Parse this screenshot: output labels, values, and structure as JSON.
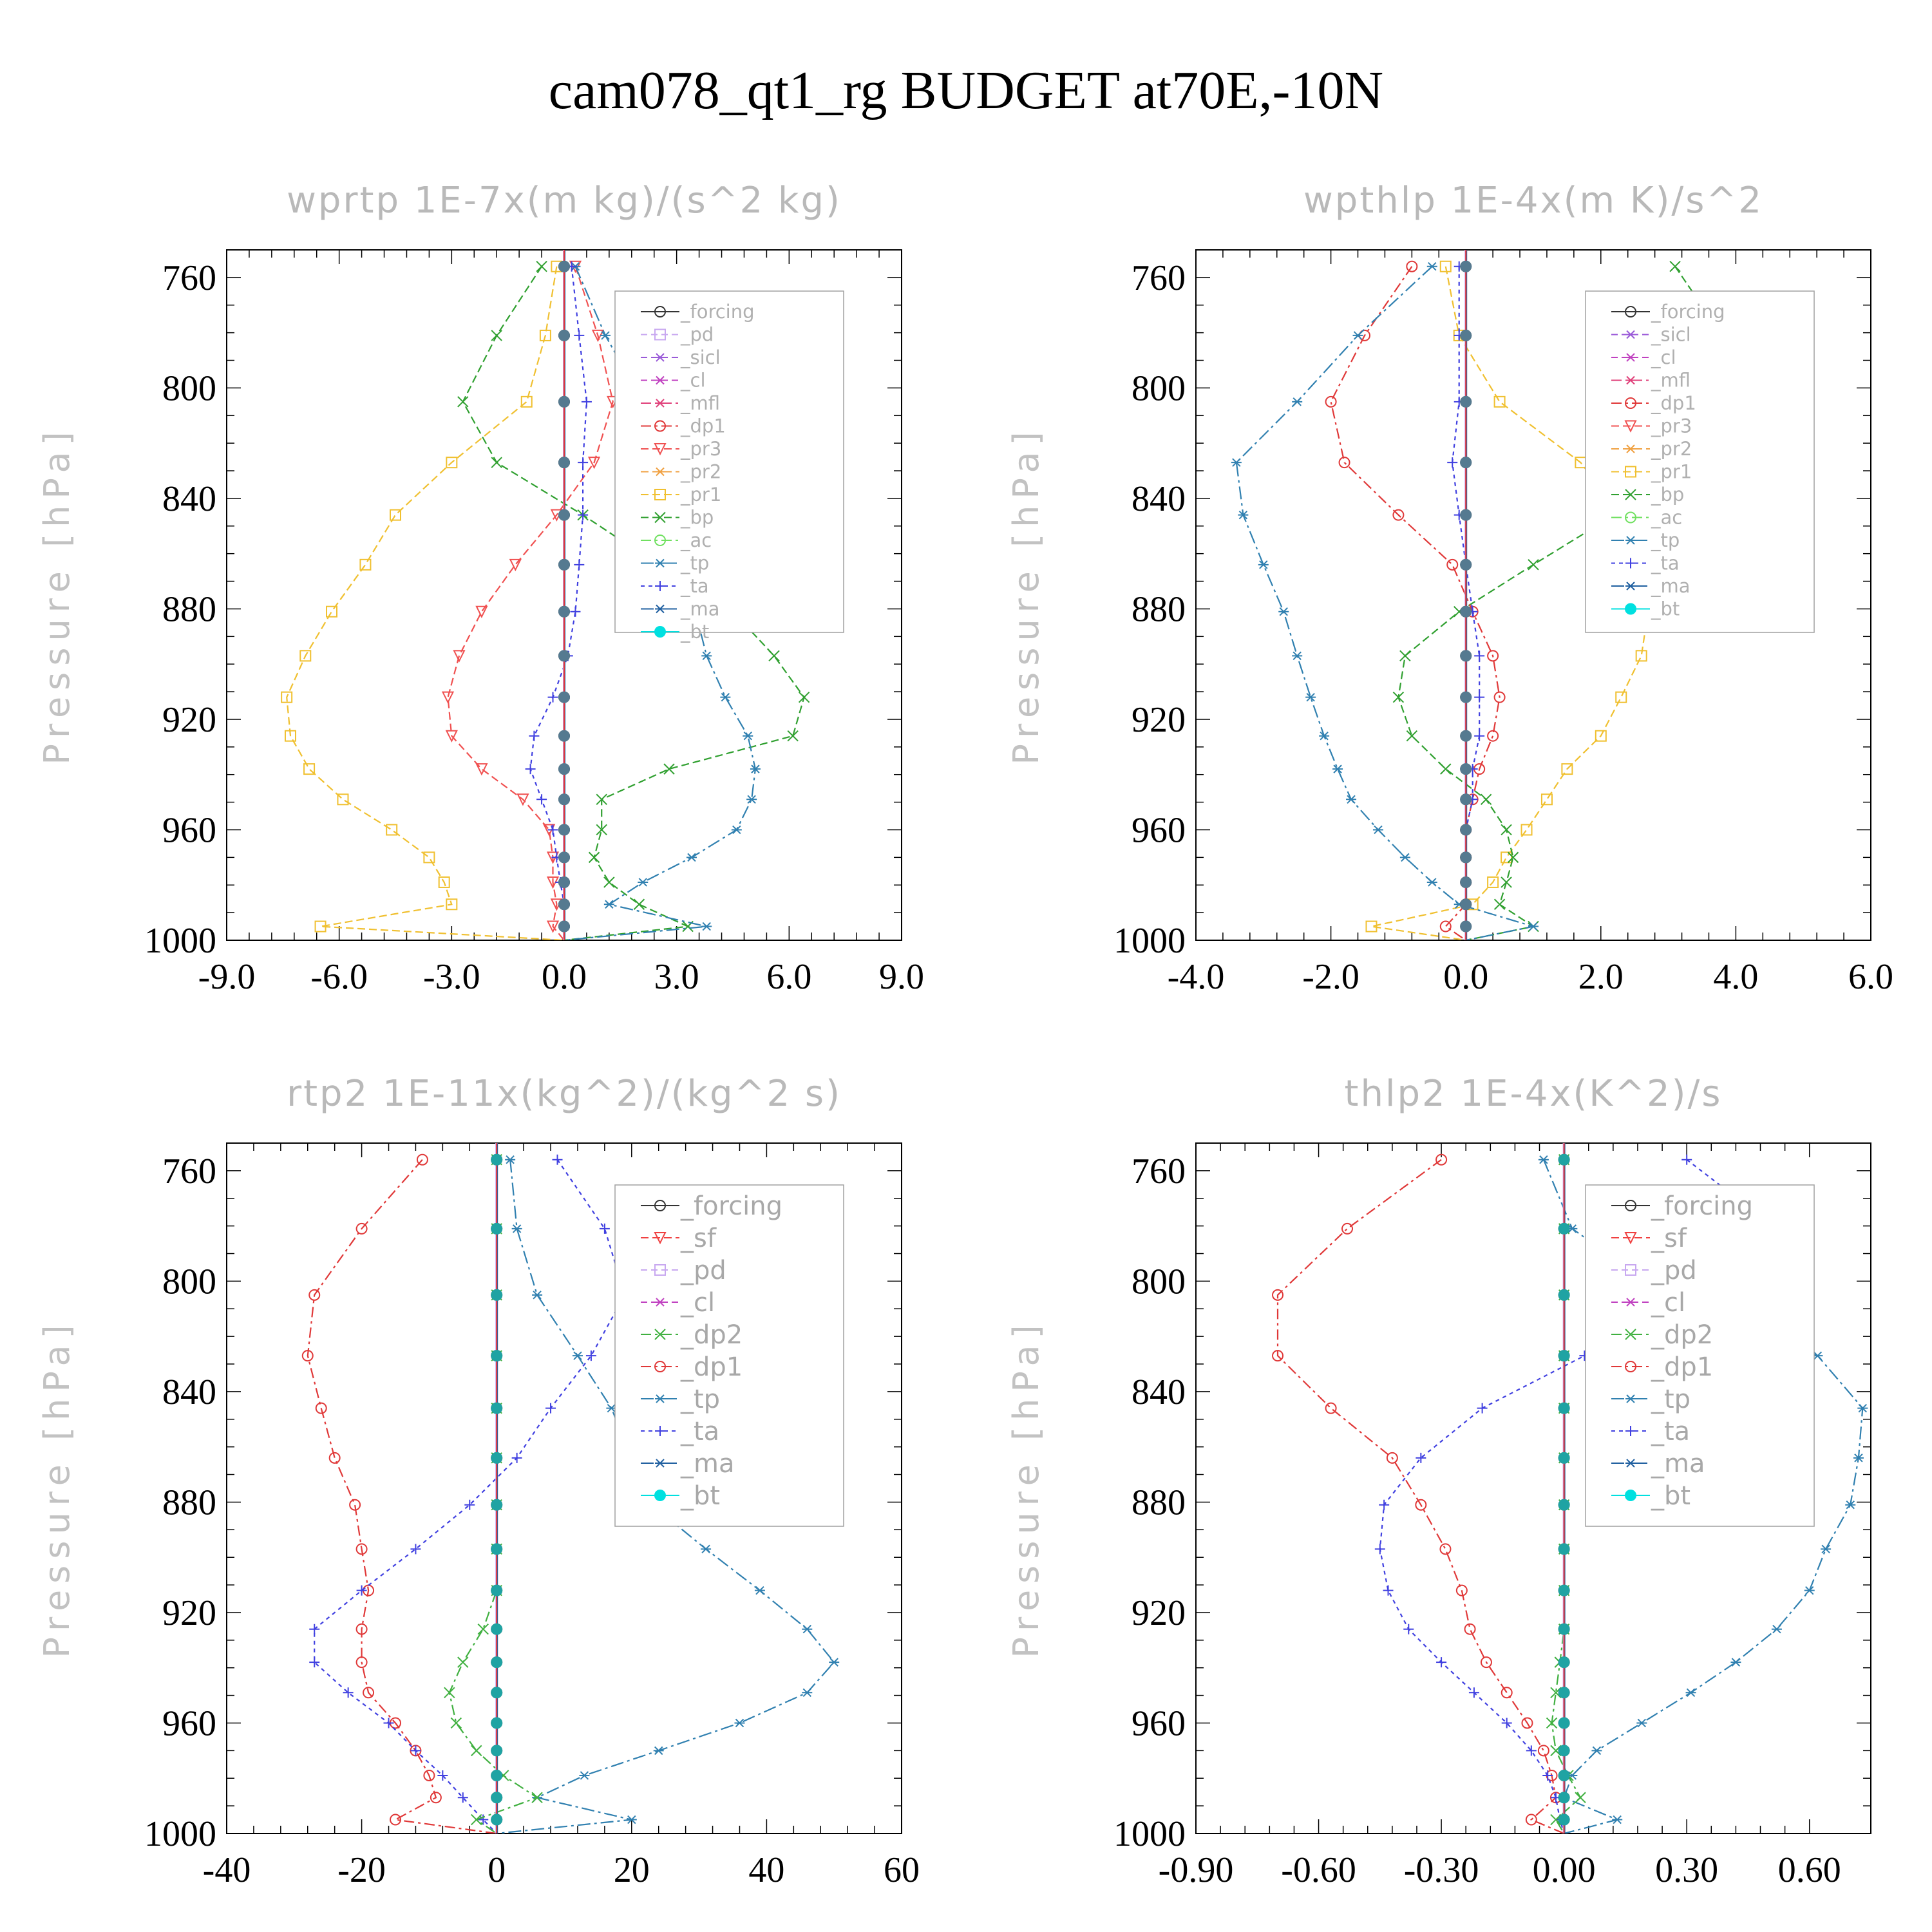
{
  "title": "cam078_qt1_rg  BUDGET at70E,-10N",
  "ylabel": "Pressure [hPa]",
  "colors": {
    "forcing": "#333333",
    "pd": "#c8a8f0",
    "sicl": "#9a5ad8",
    "cl": "#c040c0",
    "mfl": "#e0407a",
    "dp1": "#e03838",
    "pr3": "#f05050",
    "pr2": "#f0a040",
    "pr1": "#f0c030",
    "bp": "#30a030",
    "ac": "#70e060",
    "tp": "#3080b0",
    "ta": "#4040e0",
    "ma": "#2060a0",
    "bt": "#00e0e0",
    "sf": "#f04040",
    "dp2": "#40b040"
  },
  "chart_data": [
    {
      "type": "line",
      "title": "wprtp  1E-7x(m kg)/(s^2 kg)",
      "ylabel": "Pressure [hPa]",
      "xlim": [
        -9,
        9
      ],
      "ylim": [
        1000,
        750
      ],
      "xticks": [
        "-9.0",
        "-6.0",
        "-3.0",
        "0.0",
        "3.0",
        "6.0",
        "9.0"
      ],
      "yticks": [
        "760",
        "800",
        "840",
        "880",
        "920",
        "960",
        "1000"
      ],
      "legend_small": true,
      "legend": [
        {
          "key": "forcing",
          "label": "_forcing"
        },
        {
          "key": "pd",
          "label": "_pd"
        },
        {
          "key": "sicl",
          "label": "_sicl"
        },
        {
          "key": "cl",
          "label": "_cl"
        },
        {
          "key": "mfl",
          "label": "_mfl"
        },
        {
          "key": "dp1",
          "label": "_dp1"
        },
        {
          "key": "pr3",
          "label": "_pr3"
        },
        {
          "key": "pr2",
          "label": "_pr2"
        },
        {
          "key": "pr1",
          "label": "_pr1"
        },
        {
          "key": "bp",
          "label": "_bp"
        },
        {
          "key": "ac",
          "label": "_ac"
        },
        {
          "key": "tp",
          "label": "_tp"
        },
        {
          "key": "ta",
          "label": "_ta"
        },
        {
          "key": "ma",
          "label": "_ma"
        },
        {
          "key": "bt",
          "label": "_bt"
        }
      ],
      "levels": [
        756,
        781,
        805,
        827,
        846,
        864,
        881,
        897,
        912,
        926,
        938,
        949,
        960,
        970,
        979,
        987,
        995,
        1000
      ],
      "series": [
        {
          "key": "pr1",
          "x": [
            -0.2,
            -0.5,
            -1.0,
            -3.0,
            -4.5,
            -5.3,
            -6.2,
            -6.9,
            -7.4,
            -7.3,
            -6.8,
            -5.9,
            -4.6,
            -3.6,
            -3.2,
            -3.0,
            -6.5,
            0.0
          ]
        },
        {
          "key": "bp",
          "x": [
            -0.6,
            -1.8,
            -2.7,
            -1.8,
            0.5,
            2.5,
            4.5,
            5.6,
            6.4,
            6.1,
            2.8,
            1.0,
            1.0,
            0.8,
            1.2,
            2.0,
            3.3,
            0.0
          ]
        },
        {
          "key": "pr3",
          "x": [
            0.3,
            0.9,
            1.3,
            0.8,
            -0.2,
            -1.3,
            -2.2,
            -2.8,
            -3.1,
            -3.0,
            -2.2,
            -1.1,
            -0.4,
            -0.3,
            -0.3,
            -0.2,
            -0.3,
            0.0
          ]
        },
        {
          "key": "tp",
          "x": [
            0.3,
            1.1,
            2.1,
            2.8,
            3.4,
            3.5,
            3.5,
            3.8,
            4.3,
            4.9,
            5.1,
            5.0,
            4.6,
            3.4,
            2.1,
            1.2,
            3.8,
            0.0
          ]
        },
        {
          "key": "ta",
          "x": [
            0.2,
            0.4,
            0.6,
            0.5,
            0.5,
            0.4,
            0.3,
            0.1,
            -0.3,
            -0.8,
            -0.9,
            -0.6,
            -0.3,
            -0.2,
            -0.1,
            0.0,
            0.0,
            0.0
          ]
        },
        {
          "key": "forcing",
          "x": [
            0,
            0,
            0,
            0,
            0,
            0,
            0,
            0,
            0,
            0,
            0,
            0,
            0,
            0,
            0,
            0,
            0,
            0
          ]
        }
      ]
    },
    {
      "type": "line",
      "title": "wpthlp  1E-4x(m K)/s^2",
      "ylabel": "Pressure [hPa]",
      "xlim": [
        -4,
        6
      ],
      "ylim": [
        1000,
        750
      ],
      "xticks": [
        "-4.0",
        "-2.0",
        "0.0",
        "2.0",
        "4.0",
        "6.0"
      ],
      "yticks": [
        "760",
        "800",
        "840",
        "880",
        "920",
        "960",
        "1000"
      ],
      "legend_small": true,
      "legend": [
        {
          "key": "forcing",
          "label": "_forcing"
        },
        {
          "key": "sicl",
          "label": "_sicl"
        },
        {
          "key": "cl",
          "label": "_cl"
        },
        {
          "key": "mfl",
          "label": "_mfl"
        },
        {
          "key": "dp1",
          "label": "_dp1"
        },
        {
          "key": "pr3",
          "label": "_pr3"
        },
        {
          "key": "pr2",
          "label": "_pr2"
        },
        {
          "key": "pr1",
          "label": "_pr1"
        },
        {
          "key": "bp",
          "label": "_bp"
        },
        {
          "key": "ac",
          "label": "_ac"
        },
        {
          "key": "tp",
          "label": "_tp"
        },
        {
          "key": "ta",
          "label": "_ta"
        },
        {
          "key": "ma",
          "label": "_ma"
        },
        {
          "key": "bt",
          "label": "_bt"
        }
      ],
      "levels": [
        756,
        781,
        805,
        827,
        846,
        864,
        881,
        897,
        912,
        926,
        938,
        949,
        960,
        970,
        979,
        987,
        995,
        1000
      ],
      "series": [
        {
          "key": "pr1",
          "x": [
            -0.3,
            -0.1,
            0.5,
            1.7,
            2.3,
            2.6,
            2.7,
            2.6,
            2.3,
            2.0,
            1.5,
            1.2,
            0.9,
            0.6,
            0.4,
            0.1,
            -1.4,
            0.0
          ]
        },
        {
          "key": "bp",
          "x": [
            3.1,
            3.8,
            4.2,
            3.5,
            2.2,
            1.0,
            -0.1,
            -0.9,
            -1.0,
            -0.8,
            -0.3,
            0.3,
            0.6,
            0.7,
            0.6,
            0.5,
            1.0,
            0.0
          ]
        },
        {
          "key": "dp1",
          "x": [
            -0.8,
            -1.5,
            -2.0,
            -1.8,
            -1.0,
            -0.2,
            0.1,
            0.4,
            0.5,
            0.4,
            0.2,
            0.1,
            0.0,
            0.0,
            0.0,
            0.0,
            -0.3,
            0.0
          ]
        },
        {
          "key": "tp",
          "x": [
            -0.5,
            -1.6,
            -2.5,
            -3.4,
            -3.3,
            -3.0,
            -2.7,
            -2.5,
            -2.3,
            -2.1,
            -1.9,
            -1.7,
            -1.3,
            -0.9,
            -0.5,
            -0.1,
            1.0,
            0.0
          ]
        },
        {
          "key": "ta",
          "x": [
            -0.1,
            -0.1,
            -0.1,
            -0.2,
            -0.1,
            0.0,
            0.1,
            0.2,
            0.2,
            0.2,
            0.1,
            0.1,
            0.0,
            0.0,
            0.0,
            0.0,
            0.0,
            0.0
          ]
        },
        {
          "key": "forcing",
          "x": [
            0,
            0,
            0,
            0,
            0,
            0,
            0,
            0,
            0,
            0,
            0,
            0,
            0,
            0,
            0,
            0,
            0,
            0
          ]
        }
      ]
    },
    {
      "type": "line",
      "title": "rtp2  1E-11x(kg^2)/(kg^2 s)",
      "ylabel": "Pressure [hPa]",
      "xlim": [
        -40,
        60
      ],
      "ylim": [
        1000,
        750
      ],
      "xticks": [
        "-40",
        "-20",
        "0",
        "20",
        "40",
        "60"
      ],
      "yticks": [
        "760",
        "800",
        "840",
        "880",
        "920",
        "960",
        "1000"
      ],
      "legend_small": false,
      "legend": [
        {
          "key": "forcing",
          "label": "_forcing"
        },
        {
          "key": "sf",
          "label": "_sf"
        },
        {
          "key": "pd",
          "label": "_pd"
        },
        {
          "key": "cl",
          "label": "_cl"
        },
        {
          "key": "dp2",
          "label": "_dp2"
        },
        {
          "key": "dp1",
          "label": "_dp1"
        },
        {
          "key": "tp",
          "label": "_tp"
        },
        {
          "key": "ta",
          "label": "_ta"
        },
        {
          "key": "ma",
          "label": "_ma"
        },
        {
          "key": "bt",
          "label": "_bt"
        }
      ],
      "levels": [
        756,
        781,
        805,
        827,
        846,
        864,
        881,
        897,
        912,
        926,
        938,
        949,
        960,
        970,
        979,
        987,
        995,
        1000
      ],
      "series": [
        {
          "key": "dp1",
          "x": [
            -11,
            -20,
            -27,
            -28,
            -26,
            -24,
            -21,
            -20,
            -19,
            -20,
            -20,
            -19,
            -15,
            -12,
            -10,
            -9,
            -15,
            0
          ]
        },
        {
          "key": "tp",
          "x": [
            2,
            3,
            6,
            12,
            17,
            20,
            23,
            31,
            39,
            46,
            50,
            46,
            36,
            24,
            13,
            6,
            20,
            0
          ]
        },
        {
          "key": "ta",
          "x": [
            9,
            16,
            19,
            14,
            8,
            3,
            -4,
            -12,
            -20,
            -27,
            -27,
            -22,
            -16,
            -12,
            -8,
            -5,
            -2,
            0
          ]
        },
        {
          "key": "dp2",
          "x": [
            0,
            0,
            0,
            0,
            0,
            0,
            0,
            0,
            0,
            -2,
            -5,
            -7,
            -6,
            -3,
            1,
            6,
            -3,
            0
          ]
        },
        {
          "key": "forcing",
          "x": [
            0,
            0,
            0,
            0,
            0,
            0,
            0,
            0,
            0,
            0,
            0,
            0,
            0,
            0,
            0,
            0,
            0,
            0
          ]
        }
      ]
    },
    {
      "type": "line",
      "title": "thlp2  1E-4x(K^2)/s",
      "ylabel": "Pressure [hPa]",
      "xlim": [
        -0.9,
        0.75
      ],
      "ylim": [
        1000,
        750
      ],
      "xticks": [
        "-0.90",
        "-0.60",
        "-0.30",
        "0.00",
        "0.30",
        "0.60"
      ],
      "yticks": [
        "760",
        "800",
        "840",
        "880",
        "920",
        "960",
        "1000"
      ],
      "legend_small": false,
      "legend": [
        {
          "key": "forcing",
          "label": "_forcing"
        },
        {
          "key": "sf",
          "label": "_sf"
        },
        {
          "key": "pd",
          "label": "_pd"
        },
        {
          "key": "cl",
          "label": "_cl"
        },
        {
          "key": "dp2",
          "label": "_dp2"
        },
        {
          "key": "dp1",
          "label": "_dp1"
        },
        {
          "key": "tp",
          "label": "_tp"
        },
        {
          "key": "ta",
          "label": "_ta"
        },
        {
          "key": "ma",
          "label": "_ma"
        },
        {
          "key": "bt",
          "label": "_bt"
        }
      ],
      "levels": [
        756,
        781,
        805,
        827,
        846,
        864,
        881,
        897,
        912,
        926,
        938,
        949,
        960,
        970,
        979,
        987,
        995,
        1000
      ],
      "series": [
        {
          "key": "dp1",
          "x": [
            -0.3,
            -0.53,
            -0.7,
            -0.7,
            -0.57,
            -0.42,
            -0.35,
            -0.29,
            -0.25,
            -0.23,
            -0.19,
            -0.14,
            -0.09,
            -0.05,
            -0.03,
            -0.02,
            -0.08,
            0.0
          ]
        },
        {
          "key": "tp",
          "x": [
            -0.05,
            0.02,
            0.25,
            0.62,
            0.73,
            0.72,
            0.7,
            0.64,
            0.6,
            0.52,
            0.42,
            0.31,
            0.19,
            0.08,
            0.02,
            0.0,
            0.13,
            0.0
          ]
        },
        {
          "key": "ta",
          "x": [
            0.3,
            0.52,
            0.48,
            0.05,
            -0.2,
            -0.35,
            -0.44,
            -0.45,
            -0.43,
            -0.38,
            -0.3,
            -0.22,
            -0.14,
            -0.08,
            -0.04,
            -0.02,
            -0.01,
            0.0
          ]
        },
        {
          "key": "dp2",
          "x": [
            0,
            0,
            0,
            0,
            0,
            0,
            0,
            0,
            0,
            0,
            -0.01,
            -0.02,
            -0.03,
            -0.02,
            0.01,
            0.04,
            -0.02,
            0.0
          ]
        },
        {
          "key": "forcing",
          "x": [
            0,
            0,
            0,
            0,
            0,
            0,
            0,
            0,
            0,
            0,
            0,
            0,
            0,
            0,
            0,
            0,
            0,
            0
          ]
        }
      ]
    }
  ]
}
